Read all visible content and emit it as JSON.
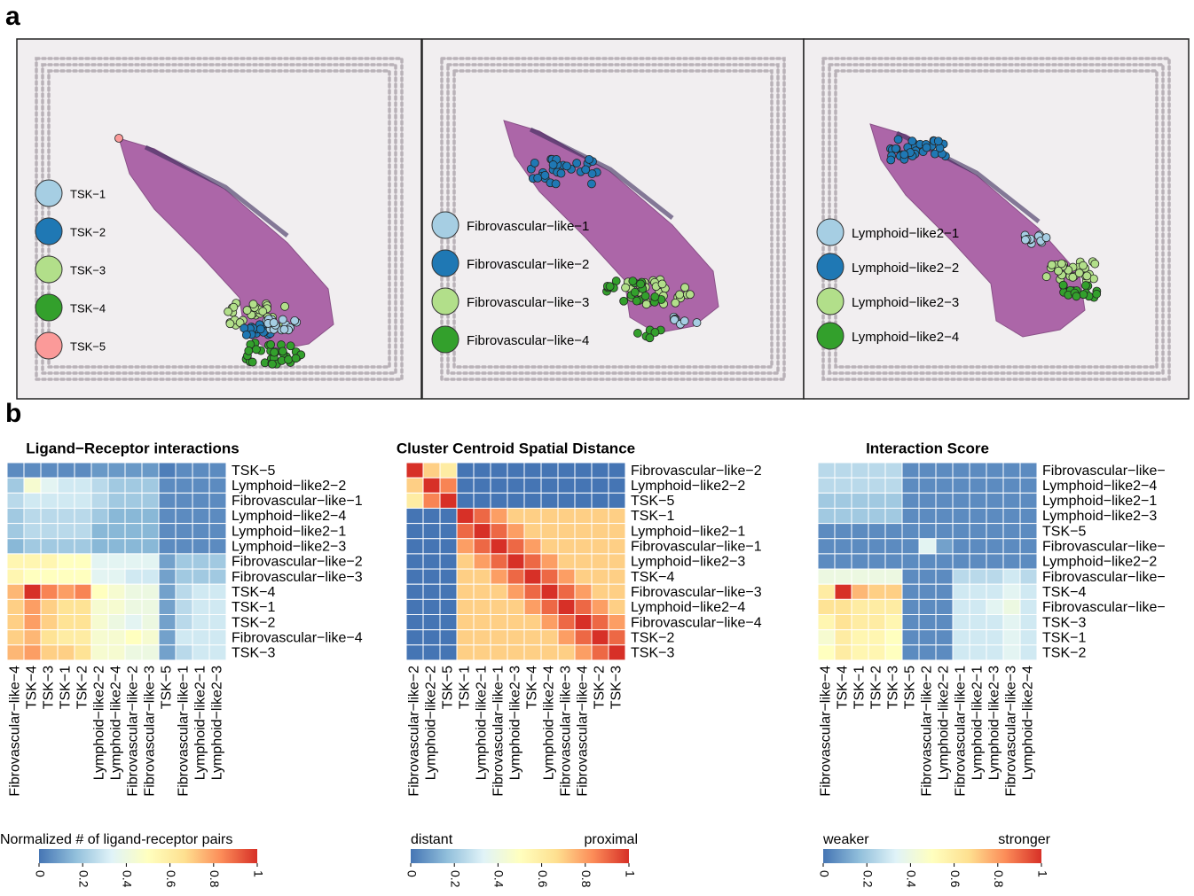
{
  "figure": {
    "panel_a_label": "a",
    "panel_b_label": "b"
  },
  "panel_a": {
    "images": [
      {
        "legend": [
          "TSK−1",
          "TSK−2",
          "TSK−3",
          "TSK−4",
          "TSK−5"
        ],
        "colors": [
          "#a6cee3",
          "#1f78b4",
          "#b2df8a",
          "#33a02c",
          "#fb9a99"
        ]
      },
      {
        "legend": [
          "Fibrovascular−like−1",
          "Fibrovascular−like−2",
          "Fibrovascular−like−3",
          "Fibrovascular−like−4"
        ],
        "colors": [
          "#a6cee3",
          "#1f78b4",
          "#b2df8a",
          "#33a02c"
        ]
      },
      {
        "legend": [
          "Lymphoid−like2−1",
          "Lymphoid−like2−2",
          "Lymphoid−like2−3",
          "Lymphoid−like2−4"
        ],
        "colors": [
          "#a6cee3",
          "#1f78b4",
          "#b2df8a",
          "#33a02c"
        ]
      }
    ]
  },
  "chart_data": [
    {
      "type": "heatmap",
      "title": "Ligand−Receptor interactions",
      "rows": [
        "TSK−5",
        "Lymphoid−like2−2",
        "Fibrovascular−like−1",
        "Lymphoid−like2−4",
        "Lymphoid−like2−1",
        "Lymphoid−like2−3",
        "Fibrovascular−like−2",
        "Fibrovascular−like−3",
        "TSK−4",
        "TSK−1",
        "TSK−2",
        "Fibrovascular−like−4",
        "TSK−3"
      ],
      "columns": [
        "Fibrovascular−like−4",
        "TSK−4",
        "TSK−3",
        "TSK−1",
        "TSK−2",
        "Lymphoid−like2−2",
        "Lymphoid−like2−4",
        "Fibrovascular−like−2",
        "Fibrovascular−like−3",
        "TSK−5",
        "Fibrovascular−like−1",
        "Lymphoid−like2−1",
        "Lymphoid−like2−3"
      ],
      "values": [
        [
          0.05,
          0.05,
          0.05,
          0.05,
          0.05,
          0.08,
          0.08,
          0.08,
          0.08,
          0.02,
          0.05,
          0.05,
          0.05
        ],
        [
          0.2,
          0.45,
          0.35,
          0.3,
          0.3,
          0.25,
          0.2,
          0.2,
          0.2,
          0.05,
          0.05,
          0.05,
          0.05
        ],
        [
          0.25,
          0.3,
          0.3,
          0.3,
          0.3,
          0.25,
          0.2,
          0.2,
          0.2,
          0.05,
          0.05,
          0.05,
          0.05
        ],
        [
          0.2,
          0.25,
          0.25,
          0.25,
          0.25,
          0.2,
          0.15,
          0.15,
          0.15,
          0.05,
          0.05,
          0.05,
          0.05
        ],
        [
          0.2,
          0.25,
          0.25,
          0.25,
          0.25,
          0.15,
          0.15,
          0.15,
          0.15,
          0.05,
          0.05,
          0.05,
          0.05
        ],
        [
          0.15,
          0.2,
          0.2,
          0.2,
          0.2,
          0.15,
          0.15,
          0.15,
          0.15,
          0.05,
          0.05,
          0.05,
          0.05
        ],
        [
          0.55,
          0.55,
          0.55,
          0.5,
          0.5,
          0.35,
          0.35,
          0.35,
          0.35,
          0.1,
          0.2,
          0.2,
          0.2
        ],
        [
          0.55,
          0.5,
          0.5,
          0.5,
          0.5,
          0.35,
          0.35,
          0.3,
          0.3,
          0.1,
          0.2,
          0.2,
          0.2
        ],
        [
          0.75,
          1,
          0.85,
          0.8,
          0.85,
          0.5,
          0.45,
          0.4,
          0.4,
          0.1,
          0.25,
          0.3,
          0.3
        ],
        [
          0.7,
          0.8,
          0.7,
          0.65,
          0.65,
          0.45,
          0.45,
          0.4,
          0.4,
          0.1,
          0.25,
          0.3,
          0.3
        ],
        [
          0.7,
          0.8,
          0.7,
          0.65,
          0.65,
          0.45,
          0.4,
          0.35,
          0.4,
          0.1,
          0.25,
          0.3,
          0.3
        ],
        [
          0.7,
          0.75,
          0.65,
          0.6,
          0.6,
          0.45,
          0.45,
          0.5,
          0.45,
          0.1,
          0.3,
          0.3,
          0.3
        ],
        [
          0.75,
          0.8,
          0.7,
          0.7,
          0.65,
          0.45,
          0.45,
          0.4,
          0.4,
          0.1,
          0.25,
          0.3,
          0.3
        ]
      ],
      "colorscale": [
        "#4575b4",
        "#91bfdb",
        "#e0f3f8",
        "#ffffbf",
        "#fee090",
        "#fc8d59",
        "#d73027"
      ],
      "zlim": [
        0,
        1
      ],
      "zticks": [
        0,
        0.2,
        0.4,
        0.6,
        0.8,
        1
      ],
      "colorbar_title": "Normalized #  of ligand-receptor pairs"
    },
    {
      "type": "heatmap",
      "title": "Cluster Centroid Spatial Distance",
      "rows": [
        "Fibrovascular−like−2",
        "Lymphoid−like2−2",
        "TSK−5",
        "TSK−1",
        "Lymphoid−like2−1",
        "Fibrovascular−like−1",
        "Lymphoid−like2−3",
        "TSK−4",
        "Fibrovascular−like−3",
        "Lymphoid−like2−4",
        "Fibrovascular−like−4",
        "TSK−2",
        "TSK−3"
      ],
      "columns": [
        "Fibrovascular−like−2",
        "Lymphoid−like2−2",
        "TSK−5",
        "TSK−1",
        "Lymphoid−like2−1",
        "Fibrovascular−like−1",
        "Lymphoid−like2−3",
        "TSK−4",
        "Lymphoid−like2−4",
        "Fibrovascular−like−3",
        "Fibrovascular−like−4",
        "TSK−2",
        "TSK−3"
      ],
      "values": [
        [
          1,
          0.7,
          0.6,
          0,
          0,
          0,
          0,
          0,
          0,
          0,
          0,
          0,
          0
        ],
        [
          0.7,
          1,
          0.85,
          0,
          0,
          0,
          0,
          0,
          0,
          0,
          0,
          0,
          0
        ],
        [
          0.6,
          0.85,
          1,
          0,
          0,
          0,
          0,
          0,
          0,
          0,
          0,
          0,
          0
        ],
        [
          0,
          0,
          0,
          1,
          0.9,
          0.8,
          0.7,
          0.7,
          0.7,
          0.7,
          0.7,
          0.7,
          0.7
        ],
        [
          0,
          0,
          0,
          0.9,
          1,
          0.9,
          0.8,
          0.7,
          0.7,
          0.7,
          0.7,
          0.7,
          0.7
        ],
        [
          0,
          0,
          0,
          0.8,
          0.9,
          1,
          0.9,
          0.8,
          0.7,
          0.7,
          0.7,
          0.7,
          0.7
        ],
        [
          0,
          0,
          0,
          0.7,
          0.8,
          0.9,
          1,
          0.9,
          0.8,
          0.7,
          0.7,
          0.7,
          0.7
        ],
        [
          0,
          0,
          0,
          0.7,
          0.7,
          0.8,
          0.9,
          1,
          0.9,
          0.8,
          0.7,
          0.7,
          0.7
        ],
        [
          0,
          0,
          0,
          0.7,
          0.7,
          0.7,
          0.8,
          0.9,
          1,
          0.9,
          0.8,
          0.7,
          0.7
        ],
        [
          0,
          0,
          0,
          0.7,
          0.7,
          0.7,
          0.7,
          0.8,
          0.9,
          1,
          0.9,
          0.8,
          0.7
        ],
        [
          0,
          0,
          0,
          0.7,
          0.7,
          0.7,
          0.7,
          0.7,
          0.8,
          0.9,
          1,
          0.9,
          0.8
        ],
        [
          0,
          0,
          0,
          0.7,
          0.7,
          0.7,
          0.7,
          0.7,
          0.7,
          0.8,
          0.9,
          1,
          0.9
        ],
        [
          0,
          0,
          0,
          0.7,
          0.7,
          0.7,
          0.7,
          0.7,
          0.7,
          0.7,
          0.8,
          0.9,
          1
        ]
      ],
      "colorscale": [
        "#4575b4",
        "#91bfdb",
        "#e0f3f8",
        "#ffffbf",
        "#fee090",
        "#fc8d59",
        "#d73027"
      ],
      "zlim": [
        0,
        1
      ],
      "zticks": [
        0,
        0.2,
        0.4,
        0.6,
        0.8,
        1
      ],
      "colorbar_low": "distant",
      "colorbar_high": "proximal"
    },
    {
      "type": "heatmap",
      "title": "Interaction Score",
      "rows": [
        "Fibrovascular−like−",
        "Lymphoid−like2−4",
        "Lymphoid−like2−1",
        "Lymphoid−like2−3",
        "TSK−5",
        "Fibrovascular−like−",
        "Lymphoid−like2−2",
        "Fibrovascular−like−",
        "TSK−4",
        "Fibrovascular−like−",
        "TSK−3",
        "TSK−1",
        "TSK−2"
      ],
      "columns": [
        "Fibrovascular−like−4",
        "TSK−4",
        "TSK−1",
        "TSK−2",
        "TSK−3",
        "TSK−5",
        "Fibrovascular−like−2",
        "Lymphoid−like2−2",
        "Fibrovascular−like−1",
        "Lymphoid−like2−1",
        "Lymphoid−like2−3",
        "Fibrovascular−like−3",
        "Lymphoid−like2−4"
      ],
      "values": [
        [
          0.25,
          0.25,
          0.25,
          0.25,
          0.25,
          0.05,
          0.05,
          0.05,
          0.05,
          0.05,
          0.05,
          0.05,
          0.05
        ],
        [
          0.25,
          0.25,
          0.25,
          0.25,
          0.25,
          0.05,
          0.05,
          0.05,
          0.05,
          0.05,
          0.05,
          0.05,
          0.05
        ],
        [
          0.2,
          0.2,
          0.2,
          0.2,
          0.2,
          0.05,
          0.05,
          0.05,
          0.05,
          0.05,
          0.05,
          0.05,
          0.05
        ],
        [
          0.2,
          0.2,
          0.2,
          0.2,
          0.2,
          0.05,
          0.05,
          0.05,
          0.05,
          0.05,
          0.05,
          0.05,
          0.05
        ],
        [
          0.05,
          0.05,
          0.05,
          0.05,
          0.05,
          0.05,
          0.05,
          0.05,
          0.05,
          0.05,
          0.05,
          0.05,
          0.05
        ],
        [
          0.05,
          0.05,
          0.05,
          0.05,
          0.05,
          0.05,
          0.35,
          0.1,
          0.05,
          0.05,
          0.05,
          0.05,
          0.05
        ],
        [
          0.05,
          0.05,
          0.05,
          0.05,
          0.05,
          0.05,
          0.05,
          0.05,
          0.05,
          0.05,
          0.05,
          0.05,
          0.05
        ],
        [
          0.4,
          0.4,
          0.4,
          0.4,
          0.4,
          0.05,
          0.05,
          0.05,
          0.25,
          0.25,
          0.25,
          0.3,
          0.25
        ],
        [
          0.6,
          1,
          0.75,
          0.7,
          0.7,
          0.05,
          0.05,
          0.05,
          0.3,
          0.3,
          0.3,
          0.35,
          0.3
        ],
        [
          0.65,
          0.65,
          0.6,
          0.6,
          0.6,
          0.05,
          0.05,
          0.05,
          0.3,
          0.3,
          0.35,
          0.4,
          0.3
        ],
        [
          0.55,
          0.65,
          0.6,
          0.6,
          0.55,
          0.05,
          0.05,
          0.05,
          0.3,
          0.3,
          0.3,
          0.35,
          0.3
        ],
        [
          0.45,
          0.6,
          0.55,
          0.55,
          0.5,
          0.05,
          0.05,
          0.05,
          0.3,
          0.3,
          0.3,
          0.35,
          0.3
        ],
        [
          0.5,
          0.6,
          0.55,
          0.55,
          0.5,
          0.05,
          0.05,
          0.05,
          0.3,
          0.3,
          0.3,
          0.35,
          0.3
        ]
      ],
      "colorscale": [
        "#4575b4",
        "#91bfdb",
        "#e0f3f8",
        "#ffffbf",
        "#fee090",
        "#fc8d59",
        "#d73027"
      ],
      "zlim": [
        0,
        1
      ],
      "zticks": [
        0,
        0.2,
        0.4,
        0.6,
        0.8,
        1
      ],
      "colorbar_low": "weaker",
      "colorbar_high": "stronger"
    }
  ]
}
